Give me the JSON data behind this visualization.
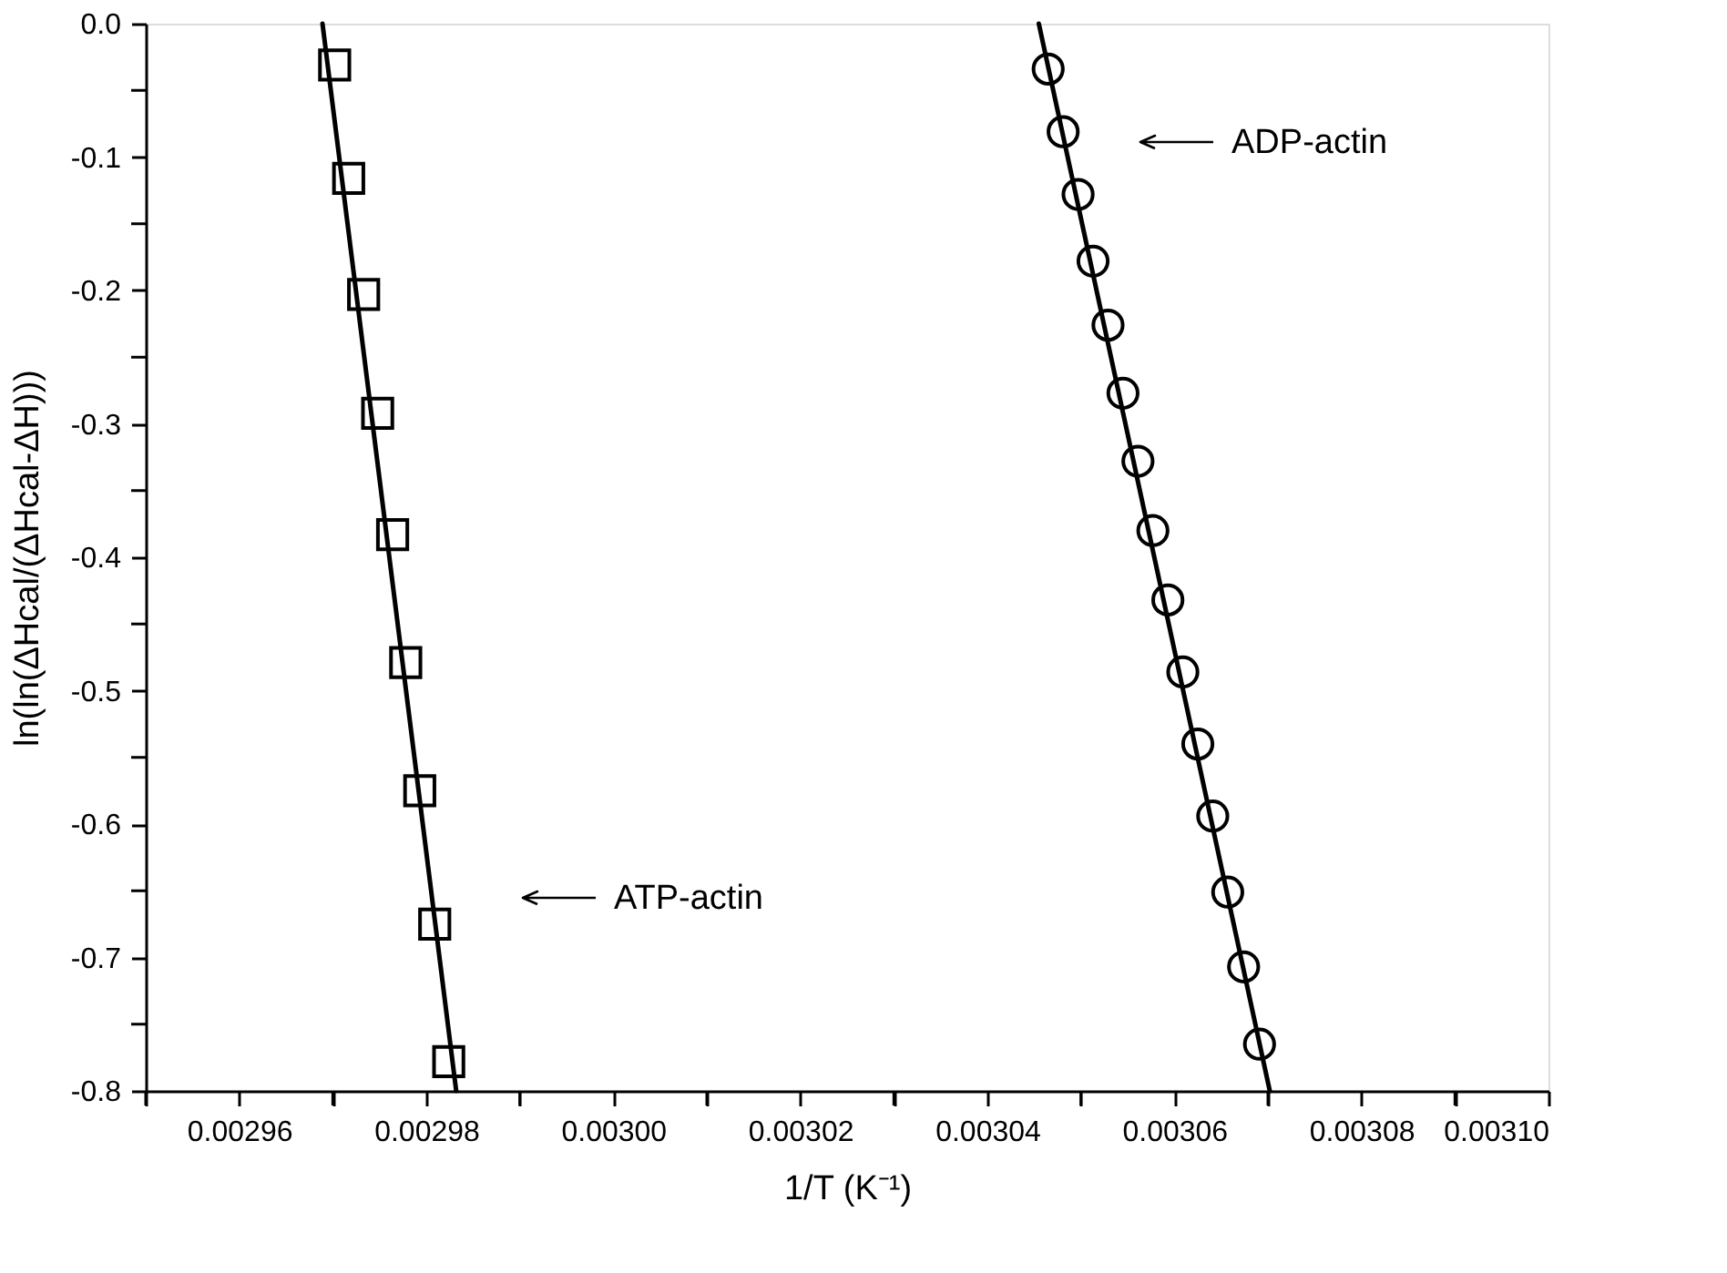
{
  "chart_data": {
    "type": "scatter",
    "xlabel": "1/T (K⁻¹)",
    "ylabel": "ln(ln(ΔHcal/(ΔHcal-ΔH)))",
    "xlim": [
      0.00295,
      0.0031
    ],
    "ylim": [
      -0.8,
      0.0
    ],
    "xticks": [
      {
        "value": 0.00295,
        "label": null
      },
      0.00296,
      {
        "value": 0.00297,
        "label": null
      },
      0.00298,
      {
        "value": 0.00299,
        "label": null
      },
      {
        "value": 0.003,
        "label": "0.00300"
      },
      {
        "value": 0.00301,
        "label": null
      },
      0.00302,
      {
        "value": 0.00303,
        "label": null
      },
      0.00304,
      {
        "value": 0.00305,
        "label": null
      },
      0.00306,
      {
        "value": 0.00307,
        "label": null
      },
      0.00308,
      {
        "value": 0.00309,
        "label": null
      },
      {
        "value": 0.0031,
        "label": "0.00310"
      }
    ],
    "yticks": [
      {
        "value": 0,
        "label": "0.0"
      },
      {
        "value": -0.05,
        "label": null
      },
      {
        "value": -0.1,
        "label": "-0.1"
      },
      {
        "value": -0.15,
        "label": null
      },
      {
        "value": -0.2,
        "label": "-0.2"
      },
      {
        "value": -0.25,
        "label": null
      },
      {
        "value": -0.3,
        "label": "-0.3"
      },
      {
        "value": -0.35,
        "label": null
      },
      {
        "value": -0.4,
        "label": "-0.4"
      },
      {
        "value": -0.45,
        "label": null
      },
      {
        "value": -0.5,
        "label": "-0.5"
      },
      {
        "value": -0.55,
        "label": null
      },
      {
        "value": -0.6,
        "label": "-0.6"
      },
      {
        "value": -0.65,
        "label": null
      },
      {
        "value": -0.7,
        "label": "-0.7"
      },
      {
        "value": -0.75,
        "label": null
      },
      {
        "value": -0.8,
        "label": "-0.8"
      }
    ],
    "series": [
      {
        "type": "scatter",
        "marker": "square",
        "color": "#000000",
        "x": [
          0.0029702,
          0.0029717,
          0.0029733,
          0.0029748,
          0.0029764,
          0.0029778,
          0.0029793,
          0.0029809,
          0.0029824
        ],
        "values": [
          -0.031,
          -0.116,
          -0.203,
          -0.292,
          -0.383,
          -0.479,
          -0.575,
          -0.675,
          -0.778
        ]
      },
      {
        "type": "scatter",
        "marker": "circle",
        "color": "#000000",
        "x": [
          0.0030465,
          0.0030481,
          0.0030497,
          0.0030513,
          0.0030529,
          0.0030545,
          0.0030561,
          0.0030577,
          0.0030593,
          0.0030609,
          0.0030625,
          0.0030641,
          0.0030657,
          0.0030674,
          0.0030691
        ],
        "values": [
          -0.034,
          -0.081,
          -0.128,
          -0.178,
          -0.226,
          -0.277,
          -0.328,
          -0.38,
          -0.432,
          -0.486,
          -0.54,
          -0.594,
          -0.651,
          -0.707,
          -0.765
        ]
      },
      {
        "type": "line",
        "line_style": "solid",
        "color": "#000000",
        "x": [
          0.0029689,
          0.0029832
        ],
        "values": [
          0.0,
          -0.8
        ]
      },
      {
        "type": "line",
        "line_style": "solid",
        "color": "#000000",
        "x": [
          0.0030455,
          0.0030702
        ],
        "values": [
          0.0,
          -0.8
        ]
      }
    ],
    "annotations": [
      "ADP-actin",
      "ATP-actin"
    ]
  }
}
